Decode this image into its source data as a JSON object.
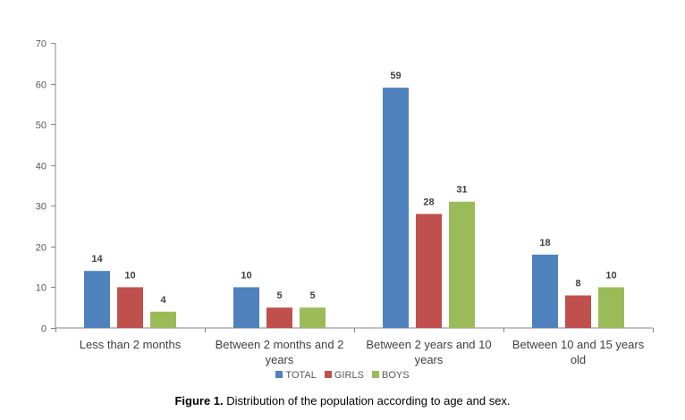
{
  "chart_data": {
    "type": "bar",
    "categories": [
      [
        "Less than 2 months"
      ],
      [
        "Between 2 months and 2",
        "years"
      ],
      [
        "Between 2 years and 10",
        "years"
      ],
      [
        "Between 10 and 15 years",
        "old"
      ]
    ],
    "series": [
      {
        "name": "TOTAL",
        "values": [
          14,
          10,
          59,
          18
        ],
        "color": "#4F81BD"
      },
      {
        "name": "GIRLS",
        "values": [
          10,
          5,
          28,
          8
        ],
        "color": "#C0504D"
      },
      {
        "name": "BOYS",
        "values": [
          4,
          5,
          31,
          10
        ],
        "color": "#9BBB59"
      }
    ],
    "ylim": [
      0,
      70
    ],
    "yticks": [
      0,
      10,
      20,
      30,
      40,
      50,
      60,
      70
    ],
    "grid": false,
    "legend_position": "bottom",
    "data_labels": true
  },
  "caption": {
    "label": "Figure 1.",
    "text": " Distribution of the population according to age and sex."
  }
}
